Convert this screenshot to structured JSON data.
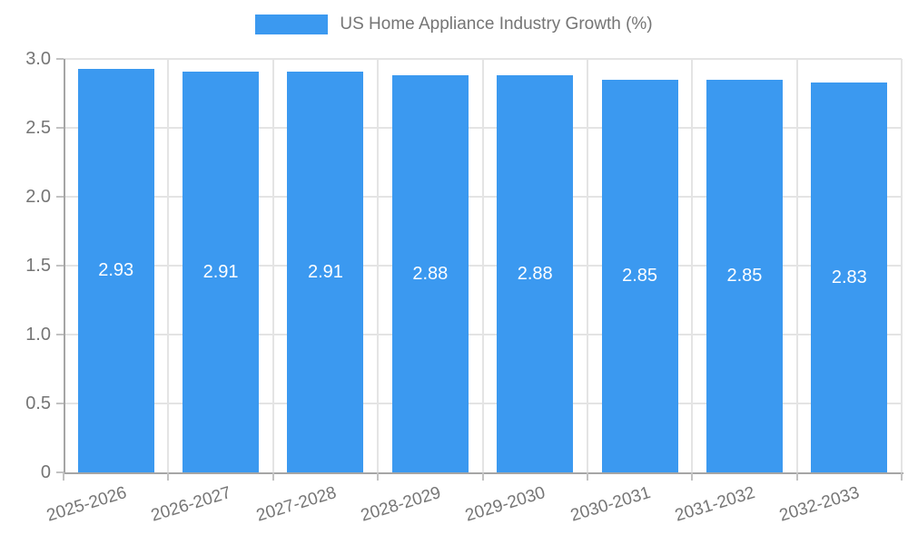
{
  "chart_data": {
    "type": "bar",
    "title": "US Home Appliance Industry Growth (%)",
    "legend": {
      "position": "top",
      "label": "US Home Appliance Industry Growth (%)"
    },
    "categories": [
      "2025-2026",
      "2026-2027",
      "2027-2028",
      "2028-2029",
      "2029-2030",
      "2030-2031",
      "2031-2032",
      "2032-2033"
    ],
    "values": [
      2.93,
      2.91,
      2.91,
      2.88,
      2.88,
      2.85,
      2.85,
      2.83
    ],
    "value_labels": [
      "2.93",
      "2.91",
      "2.91",
      "2.88",
      "2.88",
      "2.85",
      "2.85",
      "2.83"
    ],
    "value_label_position": "center-of-bar",
    "xlabel": "",
    "ylabel": "",
    "ylim": [
      0,
      3.0
    ],
    "yticks": {
      "values": [
        0,
        0.5,
        1,
        1.5,
        2,
        2.5,
        3
      ],
      "labels": [
        "0",
        "0.5",
        "1.0",
        "1.5",
        "2.0",
        "2.5",
        "3.0"
      ]
    },
    "grid": true,
    "x_label_rotation_deg": -17,
    "colors": {
      "bar": "#3b99f0",
      "grid": "#e4e4e4",
      "axis": "#a5a5a5",
      "tick": "#c2c2c2",
      "text": "#757575",
      "value_label": "#ffffff",
      "background": "#ffffff"
    }
  }
}
